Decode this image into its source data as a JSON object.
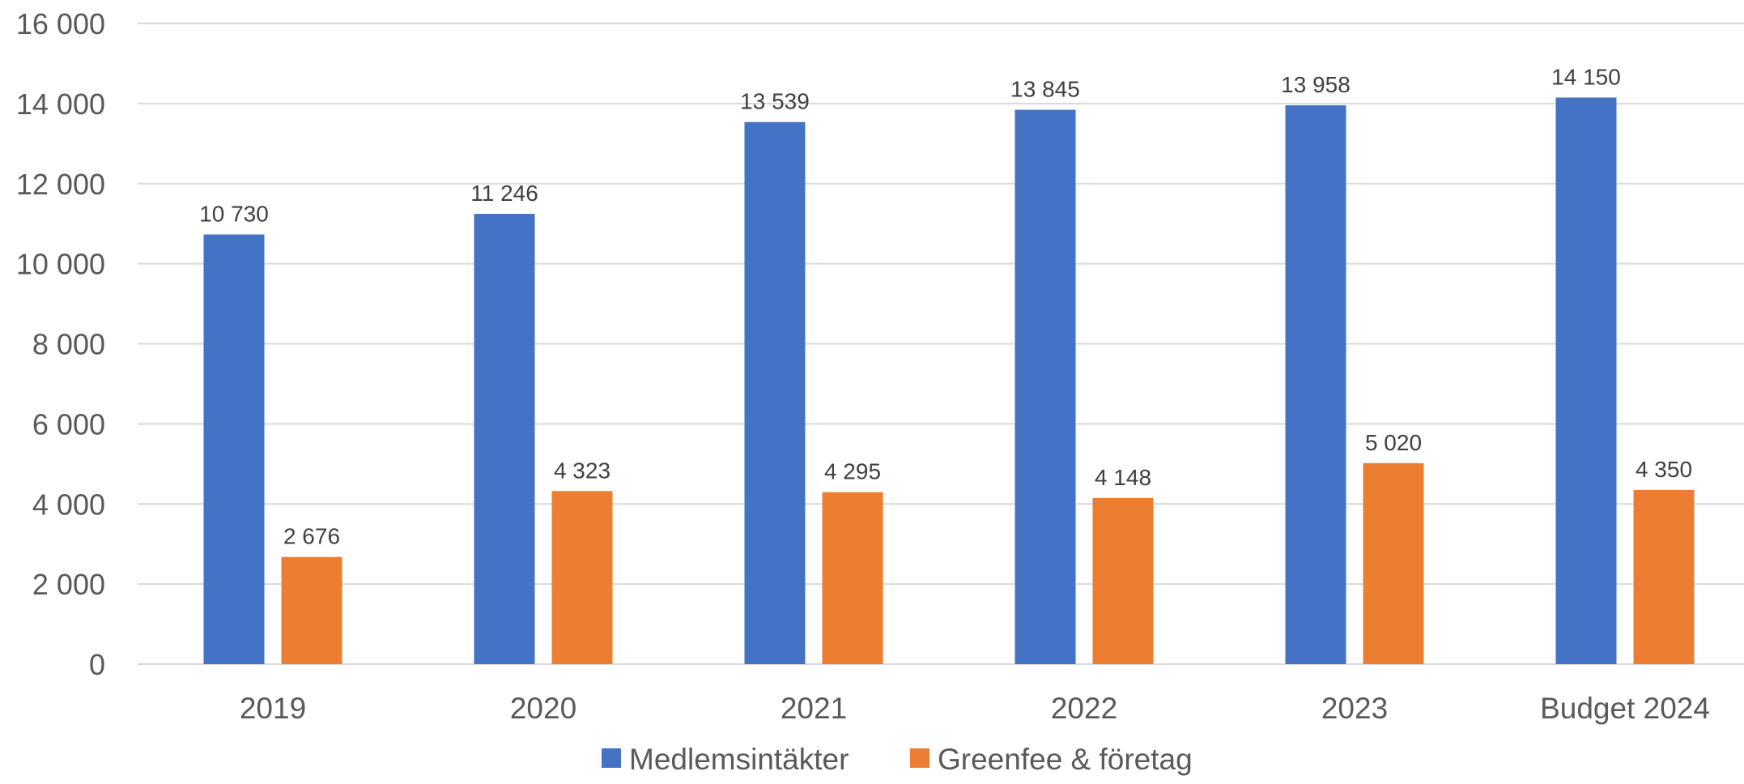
{
  "chart_data": {
    "type": "bar",
    "categories": [
      "2019",
      "2020",
      "2021",
      "2022",
      "2023",
      "Budget 2024"
    ],
    "series": [
      {
        "name": "Medlemsintäkter",
        "color": "#4472C4",
        "values": [
          10730,
          11246,
          13539,
          13845,
          13958,
          14150
        ],
        "labels": [
          "10 730",
          "11 246",
          "13 539",
          "13 845",
          "13 958",
          "14 150"
        ]
      },
      {
        "name": "Greenfee & företag",
        "color": "#ED7D31",
        "values": [
          2676,
          4323,
          4295,
          4148,
          5020,
          4350
        ],
        "labels": [
          "2 676",
          "4 323",
          "4 295",
          "4 148",
          "5 020",
          "4 350"
        ]
      }
    ],
    "yticks": [
      0,
      2000,
      4000,
      6000,
      8000,
      10000,
      12000,
      14000,
      16000
    ],
    "ytick_labels": [
      "0",
      "2 000",
      "4 000",
      "6 000",
      "8 000",
      "10 000",
      "12 000",
      "14 000",
      "16 000"
    ],
    "ylim": [
      0,
      16000
    ],
    "title": "",
    "xlabel": "",
    "ylabel": "",
    "grid": "horizontal",
    "legend": "bottom-center"
  }
}
